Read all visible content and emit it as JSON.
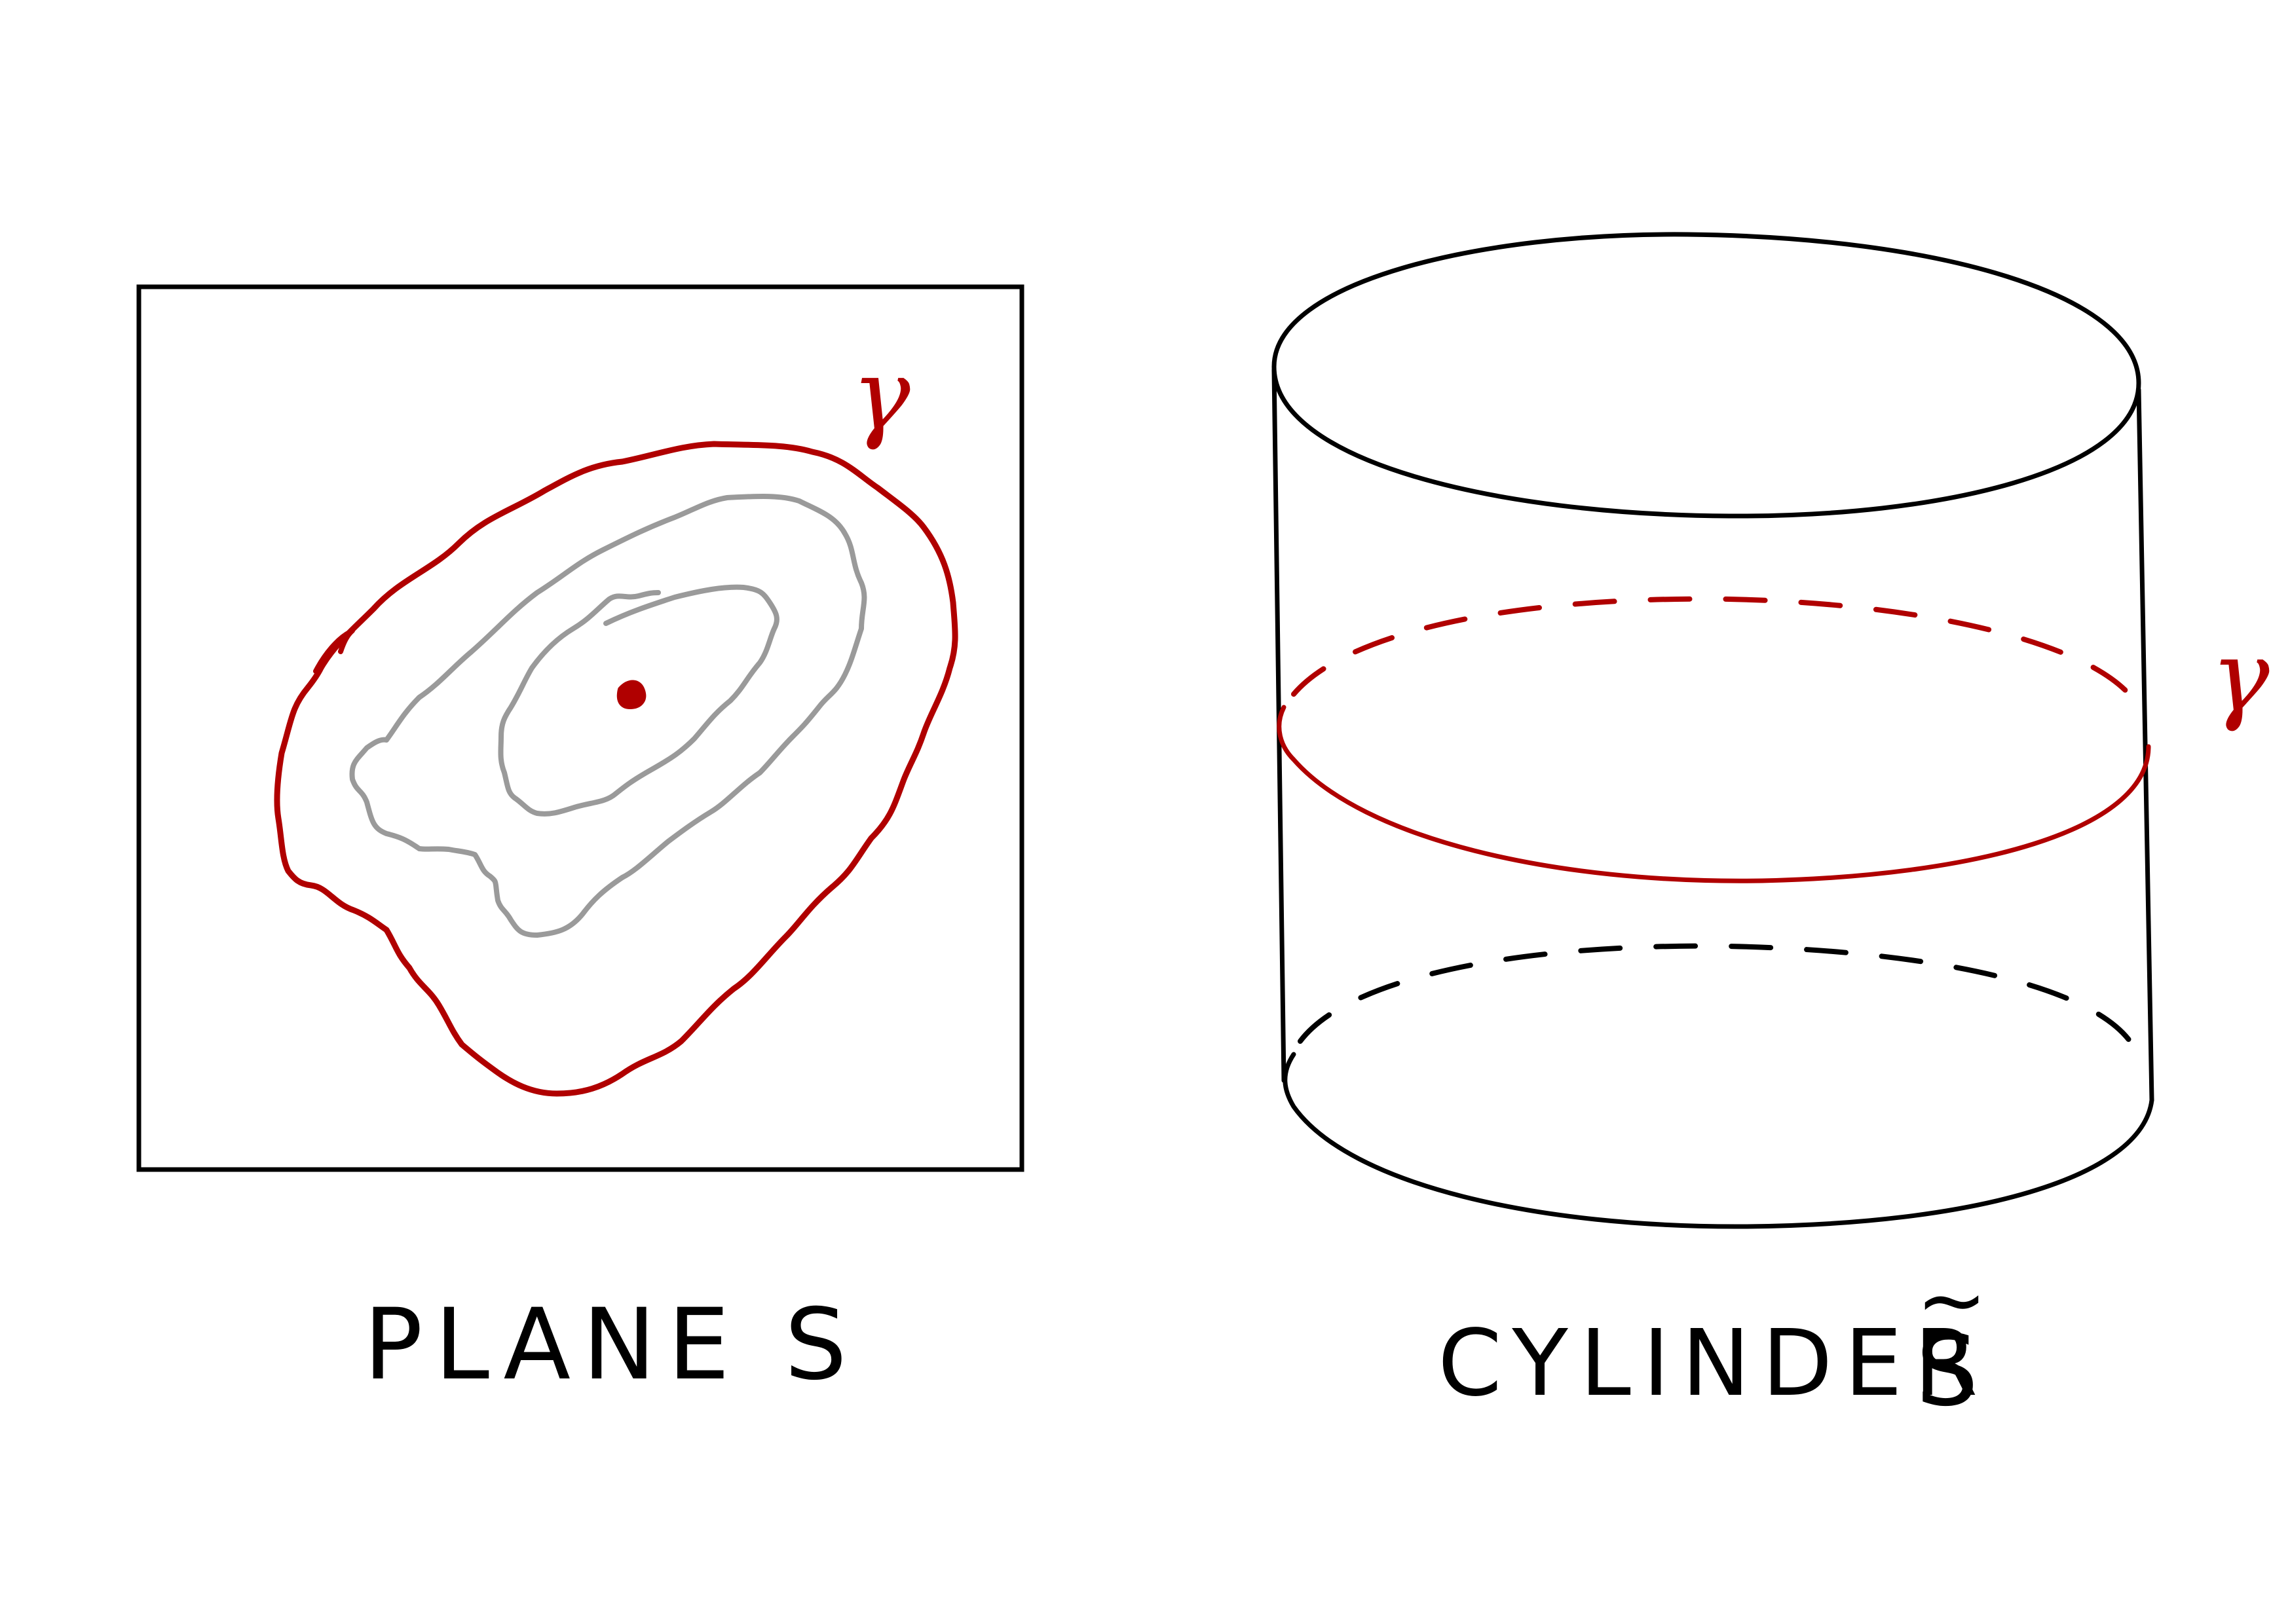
{
  "labels": {
    "plane": "PLANE S",
    "cylinder": "CYLINDER",
    "cylinder_tilde": "~",
    "cylinder_symbol": "S",
    "gamma_plane": "γ",
    "gamma_cylinder": "γ"
  },
  "colors": {
    "ink": "#000000",
    "highlight": "#b00000",
    "faded": "#9a9a9a",
    "background": "#ffffff"
  }
}
